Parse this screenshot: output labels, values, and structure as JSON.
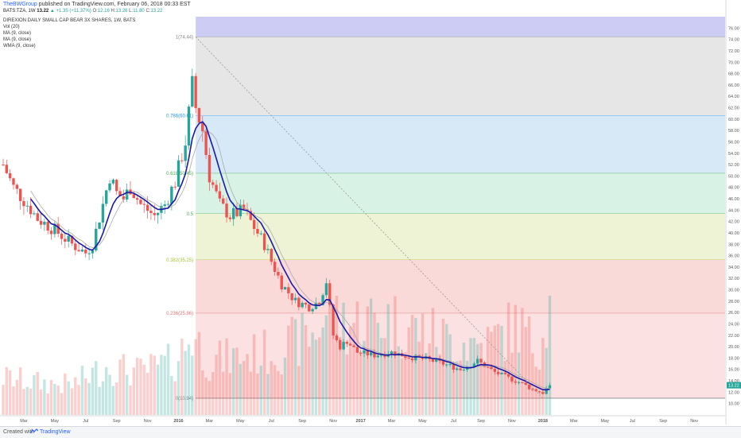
{
  "header": {
    "author": "TheBWGroup",
    "published": "published on TradingView.com, February 06, 2018 00:33 EST"
  },
  "symbol_line": {
    "symbol": "BATS:TZA, 1W",
    "last": "13.22",
    "change": "▲ +1.35 (+11.37%)",
    "open_label": "O:",
    "open": "12.16",
    "high_label": "H:",
    "high": "13.26",
    "low_label": "L:",
    "low": "11.80",
    "close_label": "C:",
    "close": "13.22"
  },
  "legend": [
    "DIREXION DAILY SMALL CAP BEAR 3X SHARES, 1W, BATS",
    "Vol (20)",
    "MA (9, close)",
    "MA (9, close)",
    "WMA (9, close)"
  ],
  "footer": {
    "created_with": "Created with",
    "brand": "TradingView"
  },
  "colors": {
    "up": "#26a69a",
    "down": "#ef5350",
    "wma": "#1a1aa8",
    "ma": "#aaaaaa",
    "fib_100_bg": "#ccccf5",
    "fib_786_bg": "#e6e6e6",
    "fib_618_bg": "#d7e8f6",
    "fib_5_bg": "#d9f2e6",
    "fib_382_bg": "#eef3d5",
    "fib_236_bg": "#fad9d9",
    "fib_0_bg": "#fbe1e1",
    "price_tag": "#26a69a"
  },
  "chart_data": {
    "type": "candlestick",
    "symbol": "TZA",
    "interval": "1W",
    "ylim": [
      8,
      78
    ],
    "y_ticks": [
      "10.00",
      "12.00",
      "14.00",
      "16.00",
      "18.00",
      "20.00",
      "22.00",
      "24.00",
      "26.00",
      "28.00",
      "30.00",
      "32.00",
      "34.00",
      "36.00",
      "38.00",
      "40.00",
      "42.00",
      "44.00",
      "46.00",
      "48.00",
      "50.00",
      "52.00",
      "54.00",
      "56.00",
      "58.00",
      "60.00",
      "62.00",
      "64.00",
      "66.00",
      "68.00",
      "70.00",
      "72.00",
      "74.00",
      "76.00"
    ],
    "x_labels": [
      {
        "label": "Mar",
        "week": 6
      },
      {
        "label": "May",
        "week": 15
      },
      {
        "label": "Jul",
        "week": 24
      },
      {
        "label": "Sep",
        "week": 33
      },
      {
        "label": "Nov",
        "week": 42
      },
      {
        "label": "2016",
        "week": 51
      },
      {
        "label": "Mar",
        "week": 60
      },
      {
        "label": "May",
        "week": 69
      },
      {
        "label": "Jul",
        "week": 78
      },
      {
        "label": "Sep",
        "week": 87
      },
      {
        "label": "Nov",
        "week": 96
      },
      {
        "label": "2017",
        "week": 104
      },
      {
        "label": "Mar",
        "week": 113
      },
      {
        "label": "May",
        "week": 122
      },
      {
        "label": "Jul",
        "week": 131
      },
      {
        "label": "Sep",
        "week": 139
      },
      {
        "label": "Nov",
        "week": 148
      },
      {
        "label": "2018",
        "week": 157
      },
      {
        "label": "Mar",
        "week": 166
      },
      {
        "label": "May",
        "week": 175
      },
      {
        "label": "Jul",
        "week": 183
      },
      {
        "label": "Sep",
        "week": 192
      },
      {
        "label": "Nov",
        "week": 201
      }
    ],
    "weeks_span": [
      0,
      210
    ],
    "fib": {
      "start_week": 56,
      "levels": [
        {
          "label": "1(74.44)",
          "value": 74.44
        },
        {
          "label": "0.786(60.61)",
          "value": 60.61
        },
        {
          "label": "0.618(50.45)",
          "value": 50.45
        },
        {
          "label": "0.5",
          "value": 43.37
        },
        {
          "label": "0.382(35.25)",
          "value": 35.25
        },
        {
          "label": "0.236(25.86)",
          "value": 25.86
        },
        {
          "label": "0(10.94)",
          "value": 10.94
        }
      ],
      "top_value": 78
    },
    "trend_line": {
      "from": {
        "week": 56,
        "value": 74.44
      },
      "to": {
        "week": 157,
        "value": 10.94
      }
    },
    "last_price": {
      "label": "13.22",
      "value": 13.22
    },
    "close_waypoints": [
      [
        0,
        52.0
      ],
      [
        3,
        48.0
      ],
      [
        7,
        45.0
      ],
      [
        10,
        42.5
      ],
      [
        15,
        40.5
      ],
      [
        20,
        38.0
      ],
      [
        24,
        36.5
      ],
      [
        26,
        38.0
      ],
      [
        29,
        45.0
      ],
      [
        31,
        50.0
      ],
      [
        33,
        47.0
      ],
      [
        35,
        46.0
      ],
      [
        37,
        48.0
      ],
      [
        40,
        45.0
      ],
      [
        44,
        43.0
      ],
      [
        47,
        45.0
      ],
      [
        50,
        49.0
      ],
      [
        53,
        56.0
      ],
      [
        55,
        66.0
      ],
      [
        56,
        62.0
      ],
      [
        58,
        58.0
      ],
      [
        60,
        50.0
      ],
      [
        63,
        45.0
      ],
      [
        66,
        43.0
      ],
      [
        70,
        44.0
      ],
      [
        73,
        41.0
      ],
      [
        76,
        38.0
      ],
      [
        78,
        35.0
      ],
      [
        81,
        31.0
      ],
      [
        85,
        28.0
      ],
      [
        89,
        27.0
      ],
      [
        92,
        28.0
      ],
      [
        94,
        31.5
      ],
      [
        96,
        22.0
      ],
      [
        98,
        20.0
      ],
      [
        100,
        21.0
      ],
      [
        103,
        19.0
      ],
      [
        108,
        18.5
      ],
      [
        113,
        19.0
      ],
      [
        118,
        18.2
      ],
      [
        123,
        17.8
      ],
      [
        128,
        17.0
      ],
      [
        133,
        16.0
      ],
      [
        138,
        17.5
      ],
      [
        143,
        15.5
      ],
      [
        147,
        14.5
      ],
      [
        151,
        13.5
      ],
      [
        154,
        12.5
      ],
      [
        157,
        11.9
      ],
      [
        159,
        13.22
      ]
    ],
    "volume_waypoints": [
      [
        0,
        0.35
      ],
      [
        10,
        0.3
      ],
      [
        20,
        0.28
      ],
      [
        30,
        0.45
      ],
      [
        40,
        0.4
      ],
      [
        50,
        0.5
      ],
      [
        55,
        0.75
      ],
      [
        60,
        0.5
      ],
      [
        70,
        0.55
      ],
      [
        80,
        0.6
      ],
      [
        90,
        0.75
      ],
      [
        96,
        1.0
      ],
      [
        100,
        0.85
      ],
      [
        110,
        0.9
      ],
      [
        120,
        0.8
      ],
      [
        130,
        0.7
      ],
      [
        140,
        0.65
      ],
      [
        150,
        0.85
      ],
      [
        155,
        0.6
      ],
      [
        159,
        0.95
      ]
    ]
  }
}
